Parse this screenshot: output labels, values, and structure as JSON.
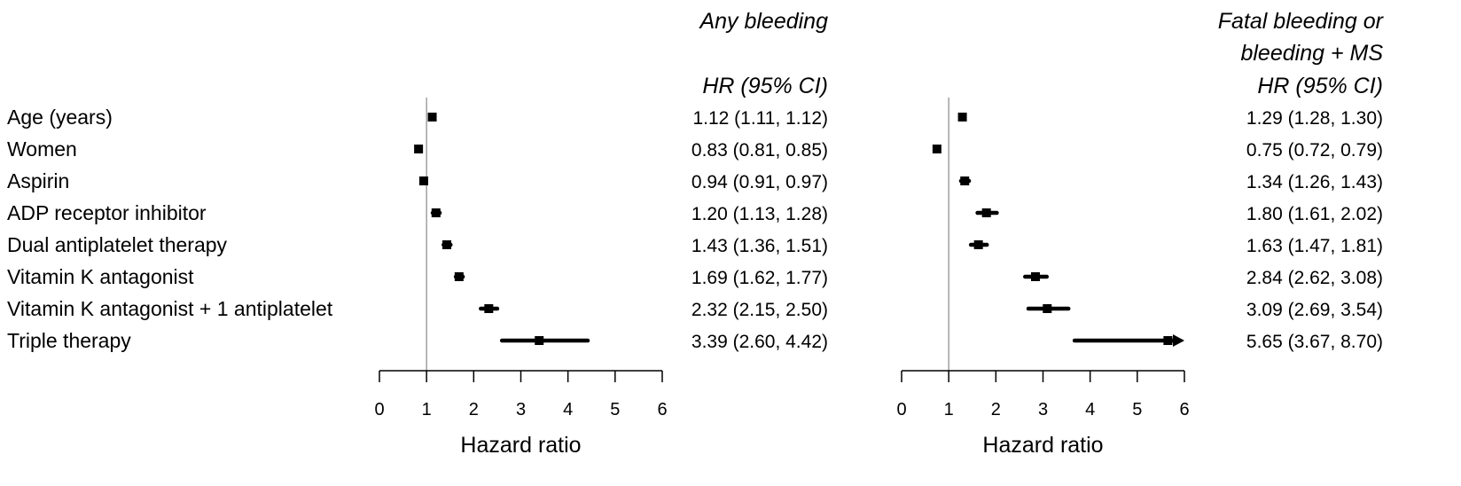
{
  "labels": [
    "Age (years)",
    "Women",
    "Aspirin",
    "ADP receptor inhibitor",
    "Dual antiplatelet therapy",
    "Vitamin K antagonist",
    "Vitamin K antagonist + 1 antiplatelet",
    "Triple therapy"
  ],
  "chart_data": [
    {
      "type": "forest",
      "header_lines": [
        "Any bleeding",
        "",
        "HR (95% CI)"
      ],
      "xlabel": "Hazard ratio",
      "xlim": [
        0,
        6
      ],
      "xticks": [
        0,
        1,
        2,
        3,
        4,
        5,
        6
      ],
      "reference_line": 1,
      "rows": [
        {
          "hr": 1.12,
          "lo": 1.11,
          "hi": 1.12,
          "text": "1.12 (1.11, 1.12)"
        },
        {
          "hr": 0.83,
          "lo": 0.81,
          "hi": 0.85,
          "text": "0.83 (0.81, 0.85)"
        },
        {
          "hr": 0.94,
          "lo": 0.91,
          "hi": 0.97,
          "text": "0.94 (0.91, 0.97)"
        },
        {
          "hr": 1.2,
          "lo": 1.13,
          "hi": 1.28,
          "text": "1.20 (1.13, 1.28)"
        },
        {
          "hr": 1.43,
          "lo": 1.36,
          "hi": 1.51,
          "text": "1.43 (1.36, 1.51)"
        },
        {
          "hr": 1.69,
          "lo": 1.62,
          "hi": 1.77,
          "text": "1.69 (1.62, 1.77)"
        },
        {
          "hr": 2.32,
          "lo": 2.15,
          "hi": 2.5,
          "text": "2.32 (2.15, 2.50)"
        },
        {
          "hr": 3.39,
          "lo": 2.6,
          "hi": 4.42,
          "text": "3.39 (2.60, 4.42)"
        }
      ]
    },
    {
      "type": "forest",
      "header_lines": [
        "Fatal bleeding or",
        "bleeding + MS",
        "HR (95% CI)"
      ],
      "xlabel": "Hazard ratio",
      "xlim": [
        0,
        6
      ],
      "xticks": [
        0,
        1,
        2,
        3,
        4,
        5,
        6
      ],
      "reference_line": 1,
      "rows": [
        {
          "hr": 1.29,
          "lo": 1.28,
          "hi": 1.3,
          "text": "1.29 (1.28, 1.30)"
        },
        {
          "hr": 0.75,
          "lo": 0.72,
          "hi": 0.79,
          "text": "0.75 (0.72, 0.79)"
        },
        {
          "hr": 1.34,
          "lo": 1.26,
          "hi": 1.43,
          "text": "1.34 (1.26, 1.43)"
        },
        {
          "hr": 1.8,
          "lo": 1.61,
          "hi": 2.02,
          "text": "1.80 (1.61, 2.02)"
        },
        {
          "hr": 1.63,
          "lo": 1.47,
          "hi": 1.81,
          "text": "1.63 (1.47, 1.81)"
        },
        {
          "hr": 2.84,
          "lo": 2.62,
          "hi": 3.08,
          "text": "2.84 (2.62, 3.08)"
        },
        {
          "hr": 3.09,
          "lo": 2.69,
          "hi": 3.54,
          "text": "3.09 (2.69, 3.54)"
        },
        {
          "hr": 5.65,
          "lo": 3.67,
          "hi": 8.7,
          "text": "5.65 (3.67, 8.70)"
        }
      ]
    }
  ],
  "colors": {
    "ink": "#000000",
    "reference_line": "#a0a0a0",
    "background": "#ffffff"
  }
}
